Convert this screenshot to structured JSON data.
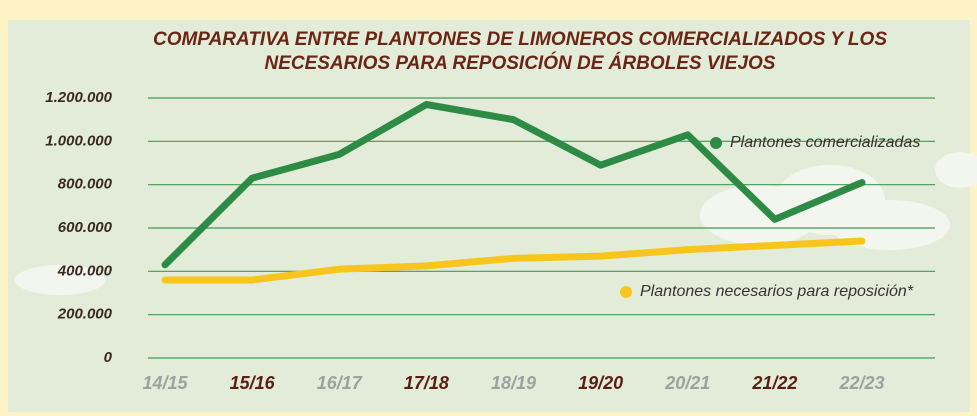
{
  "chart_data": {
    "type": "line",
    "title": [
      "COMPARATIVA ENTRE PLANTONES DE LIMONEROS COMERCIALIZADOS Y LOS",
      "NECESARIOS PARA REPOSICIÓN DE ÁRBOLES VIEJOS"
    ],
    "categories": [
      "14/15",
      "15/16",
      "16/17",
      "17/18",
      "18/19",
      "19/20",
      "20/21",
      "21/22",
      "22/23"
    ],
    "series": [
      {
        "name": "Plantones comercializadas",
        "color": "#2e8b45",
        "values": [
          430000,
          830000,
          940000,
          1170000,
          1100000,
          890000,
          1030000,
          640000,
          810000
        ]
      },
      {
        "name": "Plantones necesarios para reposición*",
        "color": "#f7c51e",
        "values": [
          360000,
          360000,
          410000,
          425000,
          460000,
          470000,
          500000,
          520000,
          540000
        ]
      }
    ],
    "ylim": [
      0,
      1200000
    ],
    "yticks": [
      0,
      {
        "value": 200000,
        "label": "200.000"
      },
      {
        "value": 400000,
        "label": "400.000"
      },
      {
        "value": 600000,
        "label": "600.000"
      },
      {
        "value": 800000,
        "label": "800.000"
      },
      {
        "value": 1000000,
        "label": "1.000.000"
      },
      {
        "value": 1200000,
        "label": "1.200.000"
      }
    ],
    "grid": true
  }
}
